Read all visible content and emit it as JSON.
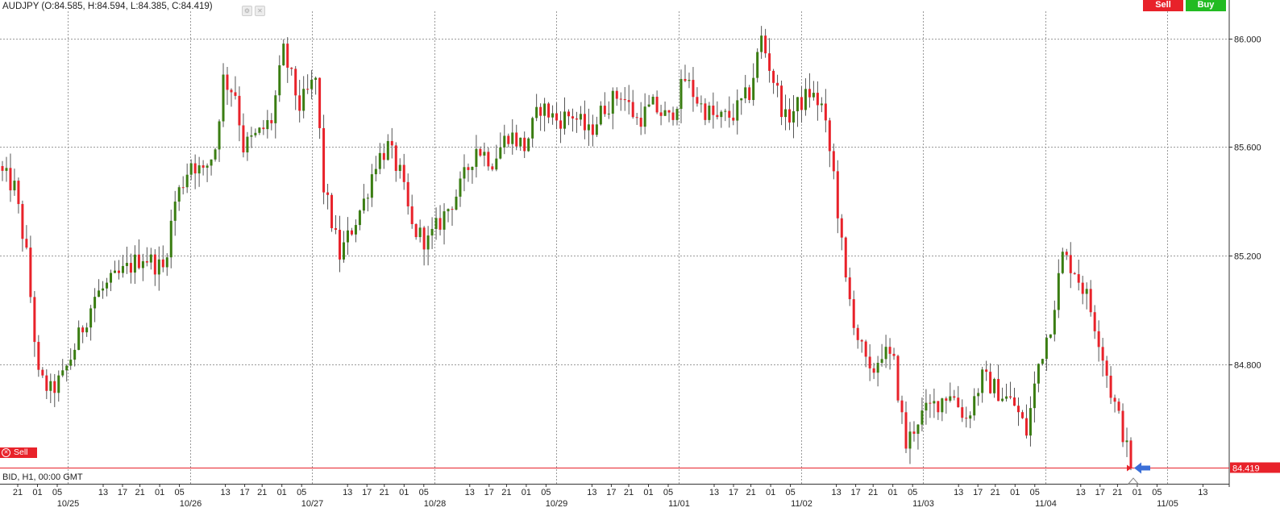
{
  "header": {
    "title": "AUDJPY (O:84.585, H:84.594, L:84.385, C:84.419)",
    "sell_label": "Sell",
    "buy_label": "Buy"
  },
  "footer": {
    "subtitle": "BID, H1, 00:00 GMT"
  },
  "order_line": {
    "label": "Sell",
    "price_label": "84.419",
    "color": "#e8222a"
  },
  "colors": {
    "up": "#3a7d12",
    "down": "#e8222a",
    "grid": "#9a9a9a",
    "arrow": "#3b6fd8"
  },
  "chart_data": {
    "type": "candlestick",
    "symbol": "AUDJPY",
    "timeframe": "H1",
    "ylim": [
      84.36,
      86.1
    ],
    "y_ticks": [
      84.8,
      85.2,
      85.6,
      86.0
    ],
    "y_tick_labels": [
      "84.800",
      "85.200",
      "85.600",
      "86.000"
    ],
    "current_price": 84.419,
    "x_hour_labels": [
      "21",
      "01",
      "05",
      "13",
      "17",
      "21",
      "01",
      "05",
      "13",
      "17",
      "21",
      "01",
      "05",
      "13",
      "17",
      "21",
      "01",
      "05",
      "13",
      "17",
      "21",
      "01",
      "05",
      "13",
      "17",
      "21",
      "01",
      "05",
      "13",
      "17",
      "21",
      "01",
      "05",
      "13",
      "17",
      "21",
      "01",
      "05",
      "13",
      "17",
      "21",
      "01",
      "05",
      "13",
      "17",
      "21",
      "01",
      "05",
      "13"
    ],
    "x_date_labels": [
      "10/25",
      "10/26",
      "10/27",
      "10/28",
      "10/29",
      "11/01",
      "11/02",
      "11/03",
      "11/04",
      "11/05"
    ],
    "grid": true,
    "anchors": [
      [
        0,
        85.5
      ],
      [
        3,
        85.45
      ],
      [
        6,
        85.2
      ],
      [
        9,
        84.75
      ],
      [
        12,
        84.7
      ],
      [
        15,
        84.75
      ],
      [
        19,
        84.9
      ],
      [
        23,
        85.05
      ],
      [
        27,
        85.1
      ],
      [
        31,
        85.15
      ],
      [
        35,
        85.2
      ],
      [
        40,
        85.15
      ],
      [
        43,
        85.4
      ],
      [
        47,
        85.55
      ],
      [
        50,
        85.5
      ],
      [
        53,
        85.6
      ],
      [
        55,
        85.85
      ],
      [
        58,
        85.8
      ],
      [
        60,
        85.6
      ],
      [
        64,
        85.65
      ],
      [
        67,
        85.7
      ],
      [
        70,
        85.95
      ],
      [
        74,
        85.75
      ],
      [
        78,
        85.85
      ],
      [
        80,
        85.45
      ],
      [
        84,
        85.2
      ],
      [
        87,
        85.3
      ],
      [
        90,
        85.4
      ],
      [
        93,
        85.55
      ],
      [
        96,
        85.6
      ],
      [
        99,
        85.5
      ],
      [
        102,
        85.3
      ],
      [
        106,
        85.25
      ],
      [
        110,
        85.35
      ],
      [
        114,
        85.45
      ],
      [
        118,
        85.6
      ],
      [
        122,
        85.55
      ],
      [
        126,
        85.65
      ],
      [
        130,
        85.6
      ],
      [
        134,
        85.75
      ],
      [
        138,
        85.7
      ],
      [
        142,
        85.72
      ],
      [
        146,
        85.65
      ],
      [
        150,
        85.75
      ],
      [
        154,
        85.8
      ],
      [
        158,
        85.7
      ],
      [
        162,
        85.75
      ],
      [
        166,
        85.7
      ],
      [
        170,
        85.85
      ],
      [
        174,
        85.75
      ],
      [
        178,
        85.7
      ],
      [
        182,
        85.72
      ],
      [
        186,
        85.8
      ],
      [
        189,
        86.0
      ],
      [
        192,
        85.85
      ],
      [
        195,
        85.7
      ],
      [
        198,
        85.75
      ],
      [
        201,
        85.8
      ],
      [
        204,
        85.75
      ],
      [
        207,
        85.5
      ],
      [
        210,
        85.1
      ],
      [
        213,
        84.9
      ],
      [
        216,
        84.75
      ],
      [
        219,
        84.85
      ],
      [
        222,
        84.8
      ],
      [
        225,
        84.5
      ],
      [
        228,
        84.6
      ],
      [
        232,
        84.65
      ],
      [
        236,
        84.7
      ],
      [
        240,
        84.6
      ],
      [
        244,
        84.75
      ],
      [
        248,
        84.7
      ],
      [
        252,
        84.65
      ],
      [
        255,
        84.55
      ],
      [
        258,
        84.8
      ],
      [
        261,
        84.95
      ],
      [
        264,
        85.2
      ],
      [
        267,
        85.15
      ],
      [
        270,
        85.05
      ],
      [
        273,
        84.9
      ],
      [
        276,
        84.7
      ],
      [
        279,
        84.55
      ],
      [
        281,
        84.419
      ]
    ]
  }
}
